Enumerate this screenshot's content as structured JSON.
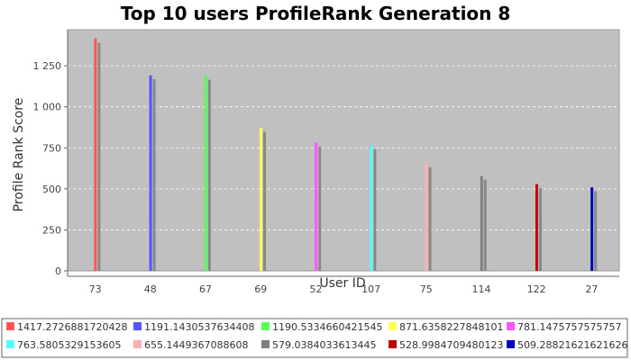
{
  "chart_data": {
    "type": "bar",
    "title": "Top 10 users ProfileRank Generation 8",
    "xlabel": "User ID",
    "ylabel": "Profile Rank Score",
    "categories": [
      "73",
      "48",
      "67",
      "69",
      "52",
      "107",
      "75",
      "114",
      "122",
      "27"
    ],
    "ylim": [
      0,
      1470
    ],
    "yticks": [
      0,
      250,
      500,
      750,
      1000,
      1250
    ],
    "ytick_labels": [
      "0",
      "250",
      "500",
      "750",
      "1 000",
      "1 250"
    ],
    "grid": true,
    "legend_position": "bottom",
    "background": "#c0c0c0",
    "series": [
      {
        "name": "1417.2726881720428",
        "color": "#ff5555",
        "category": "73",
        "value": 1417.2726881720428
      },
      {
        "name": "1191.1430537634408",
        "color": "#5555ff",
        "category": "48",
        "value": 1191.1430537634408
      },
      {
        "name": "1190.5334660421545",
        "color": "#55ff55",
        "category": "67",
        "value": 1190.5334660421545
      },
      {
        "name": "871.6358227848101",
        "color": "#ffff55",
        "category": "69",
        "value": 871.6358227848101
      },
      {
        "name": "781.1475757575757",
        "color": "#ff55ff",
        "category": "52",
        "value": 781.1475757575757
      },
      {
        "name": "763.5805329153605",
        "color": "#55ffff",
        "category": "107",
        "value": 763.5805329153605
      },
      {
        "name": "655.1449367088608",
        "color": "#ffafaf",
        "category": "75",
        "value": 655.1449367088608
      },
      {
        "name": "579.0384033613445",
        "color": "#808080",
        "category": "114",
        "value": 579.0384033613445
      },
      {
        "name": "528.9984709480123",
        "color": "#c00000",
        "category": "122",
        "value": 528.9984709480123
      },
      {
        "name": "509.28821621621626",
        "color": "#0000c0",
        "category": "27",
        "value": 509.28821621621626
      }
    ],
    "shadow_bars": {
      "color": "#888888",
      "values": [
        1390,
        1168,
        1165,
        848,
        758,
        740,
        632,
        556,
        505,
        486
      ]
    }
  }
}
